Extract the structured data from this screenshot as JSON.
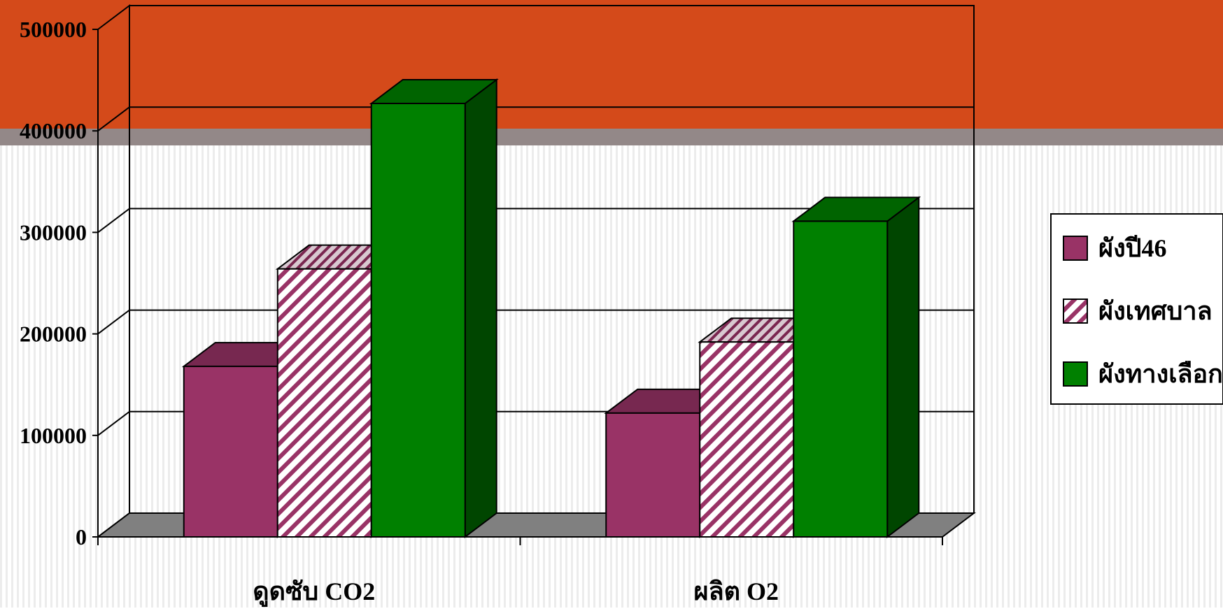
{
  "chart_data": {
    "type": "bar",
    "style": "3d-clustered",
    "categories": [
      "ดูดซับ CO2",
      "ผลิต O2"
    ],
    "series": [
      {
        "name": "ผังปี46",
        "values": [
          168000,
          122000
        ],
        "color": "#993366",
        "pattern": "solid"
      },
      {
        "name": "ผังเทศบาล",
        "values": [
          264000,
          192000
        ],
        "color": "#993366",
        "pattern": "diagonal-hatch"
      },
      {
        "name": "ผังทางเลือก",
        "values": [
          427000,
          311000
        ],
        "color": "#008000",
        "pattern": "solid"
      }
    ],
    "yticks": [
      "0",
      "100000",
      "200000",
      "300000",
      "400000",
      "500000"
    ],
    "ylim": [
      0,
      500000
    ],
    "title": "",
    "xlabel": "",
    "ylabel": "",
    "grid": true,
    "legend_position": "right"
  },
  "colors": {
    "banner": "#d44a1a",
    "banner_shadow": "#938888",
    "background": "#ffffff",
    "background_stripe": "#ececec",
    "floor": "#808080"
  }
}
